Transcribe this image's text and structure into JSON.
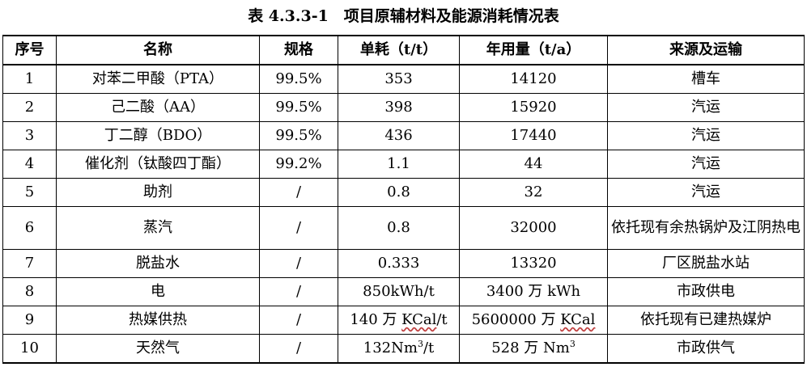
{
  "title": "表 4.3.3-1　项目原辅材料及能源消耗情况表",
  "headers": [
    "序号",
    "名称",
    "规格",
    "单耗（t/t）",
    "年用量（t/a）",
    "来源及运输"
  ],
  "rows": [
    {
      "no": "1",
      "name": "对苯二甲酸（PTA）",
      "spec": "99.5%",
      "unit": "353",
      "annual": "14120",
      "source": "槽车"
    },
    {
      "no": "2",
      "name": "己二酸（AA）",
      "spec": "99.5%",
      "unit": "398",
      "annual": "15920",
      "source": "汽运"
    },
    {
      "no": "3",
      "name": "丁二醇（BDO）",
      "spec": "99.5%",
      "unit": "436",
      "annual": "17440",
      "source": "汽运"
    },
    {
      "no": "4",
      "name": "催化剂（钛酸四丁酯）",
      "spec": "99.2%",
      "unit": "1.1",
      "annual": "44",
      "source": "汽运"
    },
    {
      "no": "5",
      "name": "助剂",
      "spec": "/",
      "unit": "0.8",
      "annual": "32",
      "source": "汽运"
    },
    {
      "no": "6",
      "name": "蒸汽",
      "spec": "/",
      "unit": "0.8",
      "annual": "32000",
      "source": "依托现有余热锅炉及江阴热电"
    },
    {
      "no": "7",
      "name": "脱盐水",
      "spec": "/",
      "unit": "0.333",
      "annual": "13320",
      "source": "厂区脱盐水站"
    },
    {
      "no": "8",
      "name": "电",
      "spec": "/",
      "unit": "850kWh/t",
      "annual": "3400 万 kWh",
      "source": "市政供电"
    },
    {
      "no": "9",
      "name": "热媒供热",
      "spec": "/",
      "unit_a": "140 万 ",
      "unit_b": "KCal",
      "unit_c": "/t",
      "annual_a": "5600000 万 ",
      "annual_b": "KCal",
      "source": "依托现有已建热媒炉"
    },
    {
      "no": "10",
      "name": "天然气",
      "spec": "/",
      "unit_a": "132Nm",
      "unit_sup": "3",
      "unit_c": "/t",
      "annual_a": "528 万 Nm",
      "annual_sup": "3",
      "source": "市政供气"
    }
  ]
}
